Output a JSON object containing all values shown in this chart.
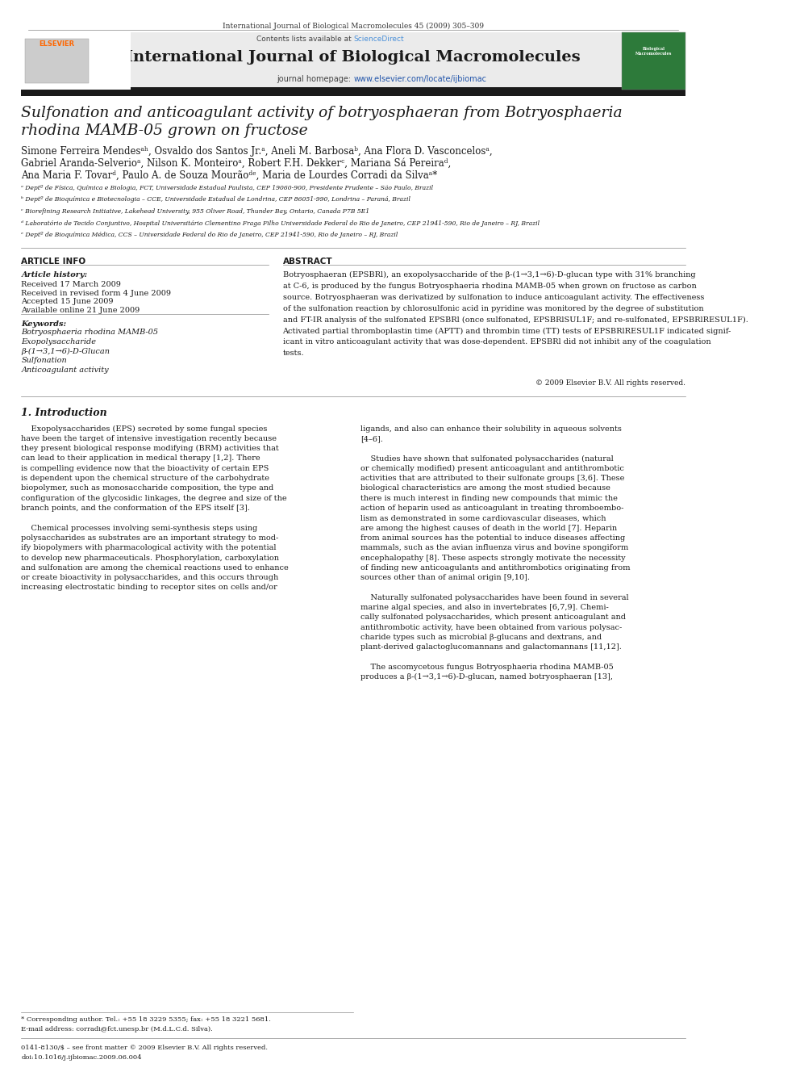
{
  "bg_color": "#ffffff",
  "page_width": 9.92,
  "page_height": 13.23,
  "header_citation": "International Journal of Biological Macromolecules 45 (2009) 305–309",
  "journal_title": "International Journal of Biological Macromolecules",
  "contents_line": "Contents lists available at ScienceDirect",
  "journal_homepage": "journal homepage: www.elsevier.com/locate/ijbiomac",
  "header_bg": "#e8e8e8",
  "dark_bar_color": "#1a1a1a",
  "elsevier_color": "#ff6600",
  "sciencedirect_color": "#4a90d9",
  "homepage_color": "#2255aa",
  "article_title_line1": "Sulfonation and anticoagulant activity of botryosphaeran from Botryosphaeria",
  "article_title_line2": "rhodina MAMB-05 grown on fructose",
  "authors": "Simone Ferreira Mendesᵃʰ, Osvaldo dos Santos Jr.ᵃ, Aneli M. Barbosaᵇ, Ana Flora D. Vasconcelosᵃ,",
  "authors2": "Gabriel Aranda-Selverioᵃ, Nilson K. Monteiroᵃ, Robert F.H. Dekkerᶜ, Mariana Sá Pereiraᵈ,",
  "authors3": "Ana Maria F. Tovarᵈ, Paulo A. de Souza Mourãoᵈᵉ, Maria de Lourdes Corradi da Silvaᵃ*",
  "affil_a": "ᵃ Deptº de Física, Química e Biologia, FCT, Universidade Estadual Paulista, CEP 19060-900, Presidente Prudente – São Paulo, Brazil",
  "affil_b": "ᵇ Deptº de Bioquímica e Biotecnologia – CCE, Universidade Estadual de Londrina, CEP 86051-990, Londrina – Paraná, Brazil",
  "affil_c": "ᶜ Biorefining Research Initiative, Lakehead University, 955 Oliver Road, Thunder Bay, Ontario, Canada P7B 5E1",
  "affil_d": "ᵈ Laboratório de Tecido Conjuntivo, Hospital Universitário Clementino Fraga Filho Universidade Federal do Rio de Janeiro, CEP 21941-590, Rio de Janeiro – RJ, Brazil",
  "affil_e": "ᵉ Deptº de Bioquímica Médica, CCS – Universidade Federal do Rio de Janeiro, CEP 21941-590, Rio de Janeiro – RJ, Brazil",
  "article_info_header": "ARTICLE INFO",
  "abstract_header": "ABSTRACT",
  "article_history_label": "Article history:",
  "received1": "Received 17 March 2009",
  "received2": "Received in revised form 4 June 2009",
  "accepted": "Accepted 15 June 2009",
  "available": "Available online 21 June 2009",
  "keywords_label": "Keywords:",
  "keyword1": "Botryosphaeria rhodina MAMB-05",
  "keyword2": "Exopolysaccharide",
  "keyword3": "β-(1→3,1→6)-D-Glucan",
  "keyword4": "Sulfonation",
  "keyword5": "Anticoagulant activity",
  "copyright": "© 2009 Elsevier B.V. All rights reserved.",
  "intro_header": "1. Introduction",
  "footnote_star": "* Corresponding author. Tel.: +55 18 3229 5355; fax: +55 18 3221 5681.",
  "footnote_email": "E-mail address: corradi@fct.unesp.br (M.d.L.C.d. Silva).",
  "footer_issn": "0141-8130/$ – see front matter © 2009 Elsevier B.V. All rights reserved.",
  "footer_doi": "doi:10.1016/j.ijbiomac.2009.06.004"
}
